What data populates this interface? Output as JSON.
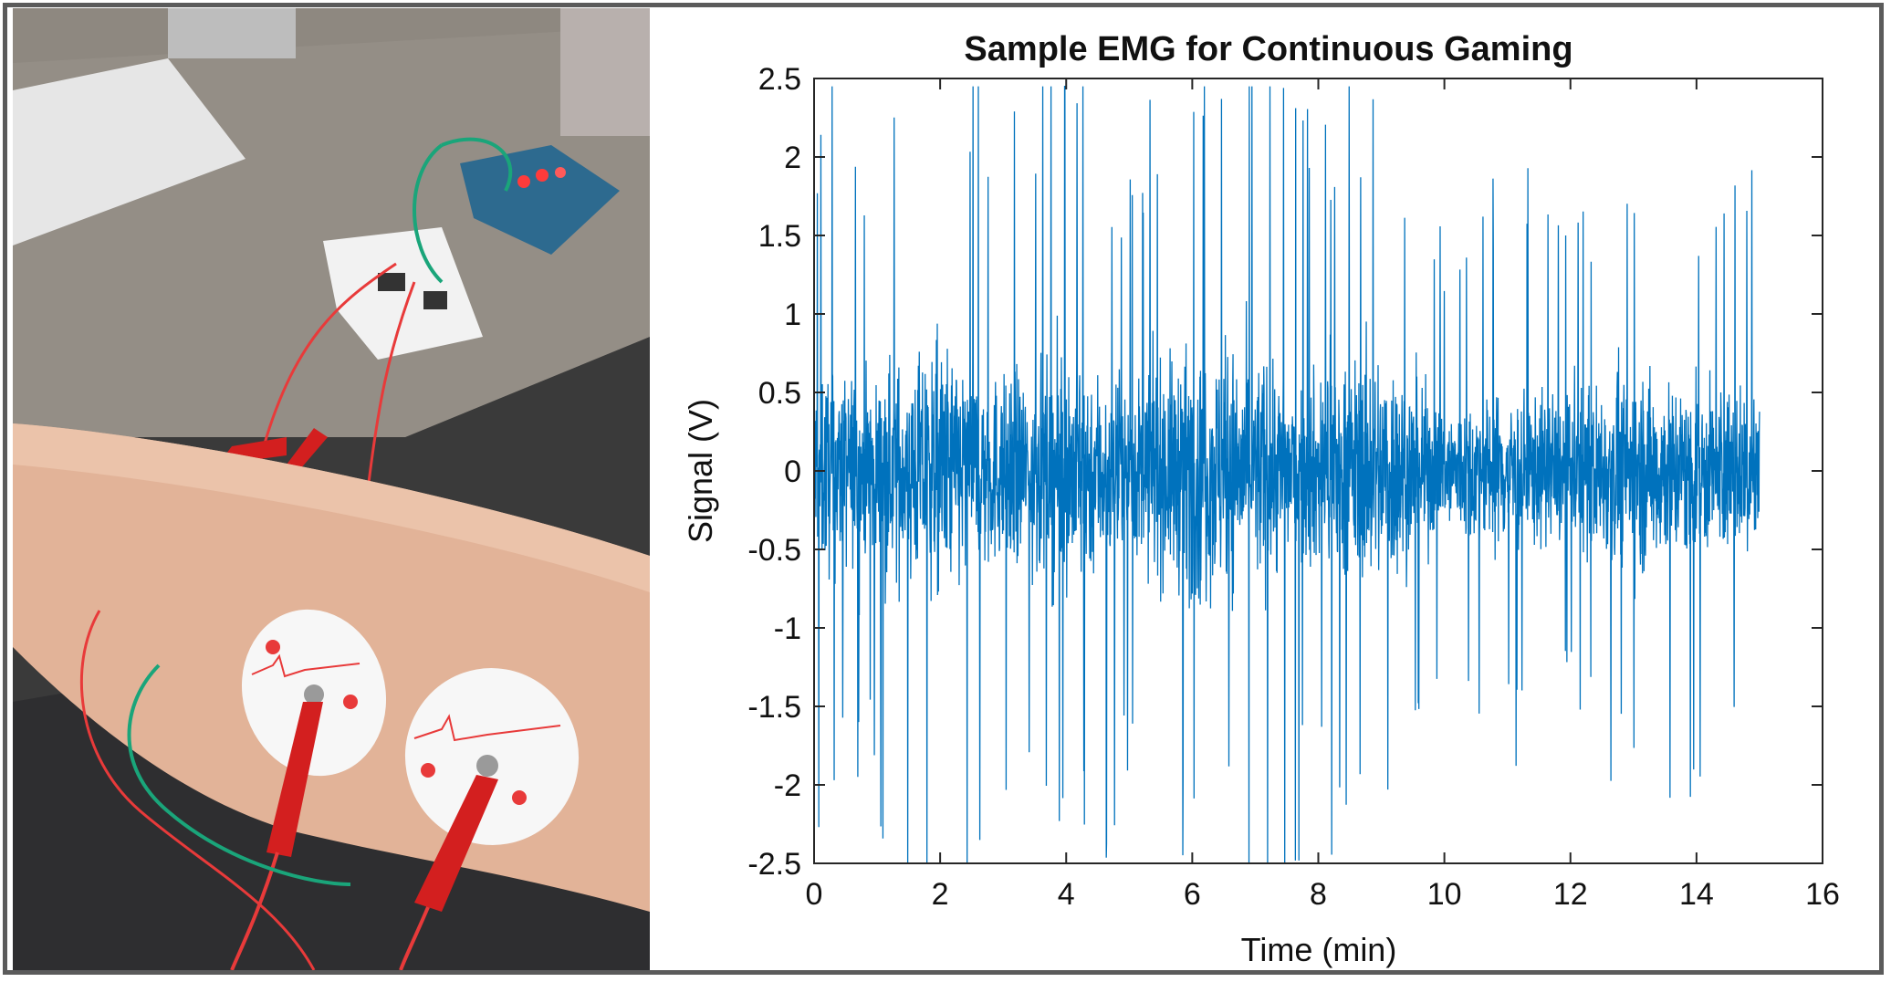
{
  "colors": {
    "trace": "#0072bd",
    "axes": "#262626",
    "frame": "#5b5b5b",
    "skin": "#e2b398",
    "desk": "#8e8880"
  },
  "photo": {
    "subject": "forearm with two ECG/EMG electrode pads and red alligator-clip leads wired to a breadboard circuit and an Arduino board on a desk"
  },
  "chart_data": {
    "type": "line",
    "title": "Sample EMG for Continuous Gaming",
    "xlabel": "Time (min)",
    "ylabel": "Signal (V)",
    "xlim": [
      0,
      16
    ],
    "ylim": [
      -2.5,
      2.5
    ],
    "xticks": [
      "0",
      "2",
      "4",
      "6",
      "8",
      "10",
      "12",
      "14",
      "16"
    ],
    "yticks": [
      "2.5",
      "2",
      "1.5",
      "1",
      "0.5",
      "0",
      "-0.5",
      "-1",
      "-1.5",
      "-2",
      "-2.5"
    ],
    "grid": false,
    "series": [
      {
        "x_range": [
          0,
          15
        ],
        "mean": 0,
        "envelope_time": [
          0,
          1,
          2,
          3,
          4,
          5,
          6,
          7,
          8,
          9,
          10,
          11,
          12,
          13,
          14,
          15
        ],
        "envelope_amplitude": [
          1.1,
          0.95,
          1.35,
          0.95,
          1.25,
          0.9,
          1.3,
          1.2,
          1.0,
          1.25,
          0.7,
          0.85,
          0.75,
          1.05,
          0.9,
          0.85
        ],
        "peak_range": [
          -2.5,
          2.45
        ]
      }
    ]
  }
}
